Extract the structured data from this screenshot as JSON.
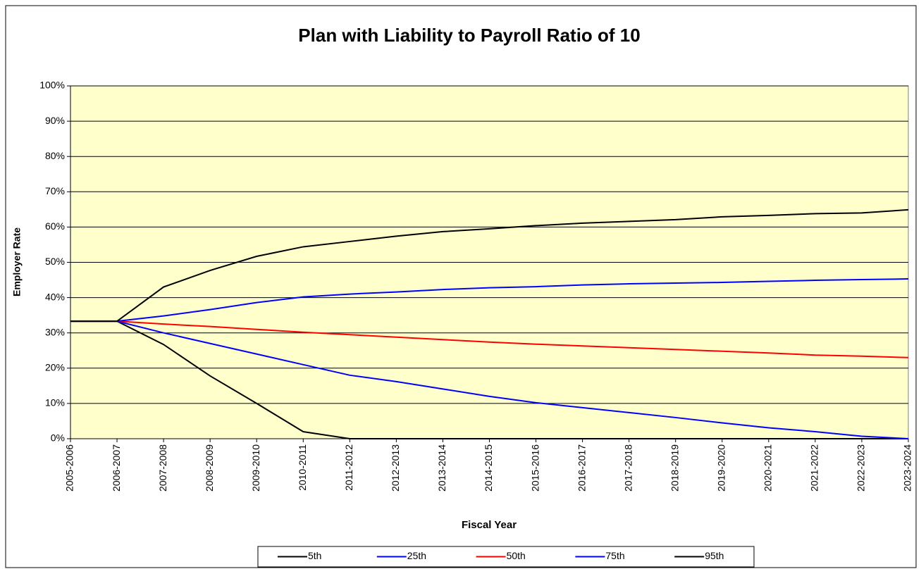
{
  "chart_data": {
    "type": "line",
    "title": "Plan with Liability to Payroll Ratio of 10",
    "x_label": "Fiscal Year",
    "y_label": "Employer Rate",
    "categories": [
      "2005-2006",
      "2006-2007",
      "2007-2008",
      "2008-2009",
      "2009-2010",
      "2010-2011",
      "2011-2012",
      "2012-2013",
      "2013-2014",
      "2014-2015",
      "2015-2016",
      "2016-2017",
      "2017-2018",
      "2018-2019",
      "2019-2020",
      "2020-2021",
      "2021-2022",
      "2022-2023",
      "2023-2024"
    ],
    "series": [
      {
        "name": "5th",
        "color": "#000000",
        "values": [
          33.3,
          33.3,
          26.7,
          17.8,
          10,
          2,
          0,
          0,
          0,
          0,
          0,
          0,
          0,
          0,
          0,
          0,
          0,
          0,
          0
        ]
      },
      {
        "name": "25th",
        "color": "#0000ff",
        "values": [
          33.3,
          33.3,
          30,
          27,
          24,
          21,
          18,
          16.2,
          14.1,
          12,
          10.2,
          8.8,
          7.4,
          6,
          4.5,
          3.1,
          2,
          0.7,
          0
        ]
      },
      {
        "name": "50th",
        "color": "#ff0000",
        "values": [
          33.3,
          33.3,
          32.5,
          31.8,
          31,
          30.2,
          29.5,
          28.8,
          28.1,
          27.4,
          26.8,
          26.3,
          25.8,
          25.3,
          24.8,
          24.3,
          23.7,
          23.4,
          23
        ]
      },
      {
        "name": "75th",
        "color": "#0000ff",
        "values": [
          33.3,
          33.3,
          34.8,
          36.6,
          38.6,
          40.2,
          41,
          41.6,
          42.3,
          42.8,
          43.1,
          43.6,
          43.9,
          44.1,
          44.3,
          44.6,
          44.9,
          45.1,
          45.3
        ]
      },
      {
        "name": "95th",
        "color": "#000000",
        "values": [
          33.3,
          33.3,
          43,
          47.7,
          51.7,
          54.4,
          55.9,
          57.4,
          58.7,
          59.5,
          60.4,
          61.1,
          61.6,
          62.1,
          62.9,
          63.3,
          63.8,
          64,
          64.9
        ]
      }
    ],
    "ylim": [
      0,
      100
    ],
    "yticks": [
      {
        "value": 0,
        "label": "0%"
      },
      {
        "value": 10,
        "label": "10%"
      },
      {
        "value": 20,
        "label": "20%"
      },
      {
        "value": 30,
        "label": "30%"
      },
      {
        "value": 40,
        "label": "40%"
      },
      {
        "value": 50,
        "label": "50%"
      },
      {
        "value": 60,
        "label": "60%"
      },
      {
        "value": 70,
        "label": "70%"
      },
      {
        "value": 80,
        "label": "80%"
      },
      {
        "value": 90,
        "label": "90%"
      },
      {
        "value": 100,
        "label": "100%"
      }
    ],
    "grid": true,
    "plot_background": "#ffffcc",
    "legend": "bottom"
  }
}
